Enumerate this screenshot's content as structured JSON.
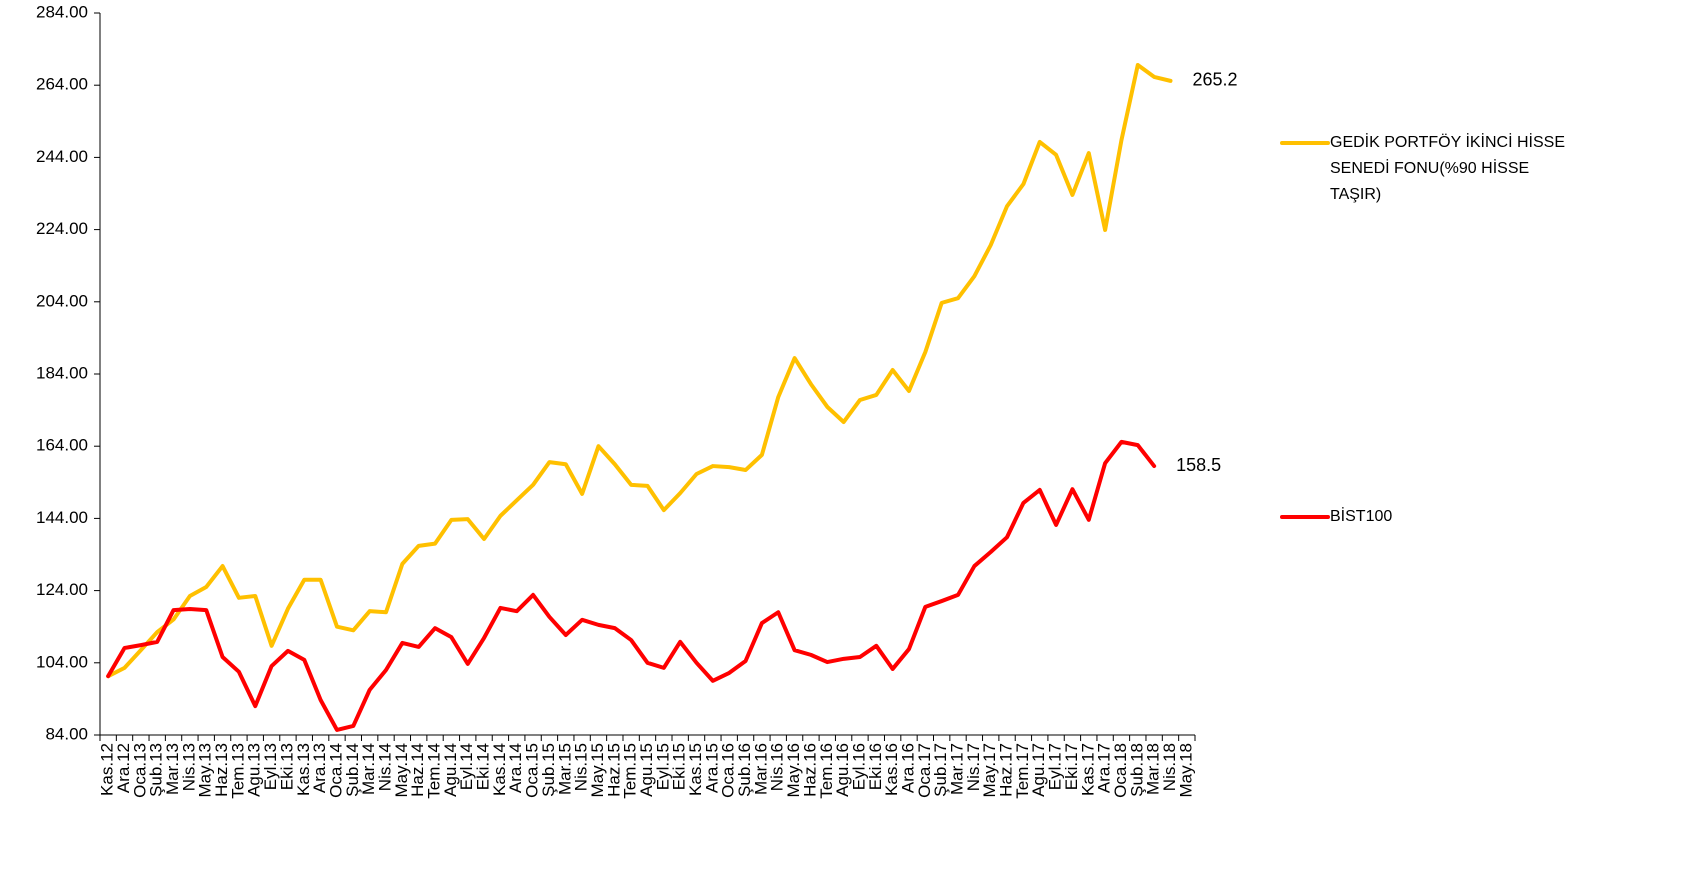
{
  "chart_data": {
    "type": "line",
    "categories": [
      "Kas.12",
      "Ara.12",
      "Oca.13",
      "Şub.13",
      "Mar.13",
      "Nis.13",
      "May.13",
      "Haz.13",
      "Tem.13",
      "Agu.13",
      "Eyl.13",
      "Eki.13",
      "Kas.13",
      "Ara.13",
      "Oca.14",
      "Şub.14",
      "Mar.14",
      "Nis.14",
      "May.14",
      "Haz.14",
      "Tem.14",
      "Agu.14",
      "Eyl.14",
      "Eki.14",
      "Kas.14",
      "Ara.14",
      "Oca.15",
      "Şub.15",
      "Mar.15",
      "Nis.15",
      "May.15",
      "Haz.15",
      "Tem.15",
      "Agu.15",
      "Eyl.15",
      "Eki.15",
      "Kas.15",
      "Ara.15",
      "Oca.16",
      "Şub.16",
      "Mar.16",
      "Nis.16",
      "May.16",
      "Haz.16",
      "Tem.16",
      "Agu.16",
      "Eyl.16",
      "Eki.16",
      "Kas.16",
      "Ara.16",
      "Oca.17",
      "Şub.17",
      "Mar.17",
      "Nis.17",
      "May.17",
      "Haz.17",
      "Tem.17",
      "Agu.17",
      "Eyl.17",
      "Eki.17",
      "Kas.17",
      "Ara.17",
      "Oca.18",
      "Şub.18",
      "Mar.18",
      "Nis.18",
      "May.18"
    ],
    "series": [
      {
        "name": "GEDİK PORTFÖY İKİNCİ HİSSE SENEDİ FONU(%90 HİSSE TAŞIR)",
        "color": "#ffc000",
        "values": [
          100.3,
          102.6,
          107.5,
          112.5,
          116,
          122.5,
          125,
          130.8,
          122,
          122.5,
          108.7,
          119,
          127,
          127,
          114,
          113,
          118.3,
          118,
          131.4,
          136.4,
          137,
          143.6,
          143.8,
          138.3,
          144.7,
          149,
          153.3,
          159.6,
          159,
          150.8,
          164,
          159,
          153.3,
          153,
          146.3,
          151,
          156.3,
          158.5,
          158.2,
          157.4,
          161.6,
          177.6,
          188.4,
          181.2,
          174.9,
          170.7,
          176.8,
          178.2,
          185.1,
          179.3,
          190.1,
          203.7,
          205,
          211.1,
          219.7,
          230.5,
          236.6,
          248.3,
          244.7,
          233.6,
          245.2,
          223.9,
          248.8,
          269.6,
          266.3,
          265.2,
          null
        ],
        "value_labels": [
          null,
          null,
          null,
          null,
          null,
          null,
          null,
          null,
          null,
          null,
          null,
          null,
          null,
          null,
          null,
          null,
          null,
          null,
          null,
          null,
          null,
          null,
          null,
          null,
          null,
          null,
          null,
          null,
          null,
          null,
          null,
          null,
          null,
          null,
          null,
          null,
          null,
          null,
          null,
          null,
          null,
          null,
          null,
          null,
          null,
          null,
          null,
          null,
          null,
          null,
          null,
          null,
          null,
          null,
          null,
          null,
          null,
          null,
          null,
          null,
          null,
          null,
          null,
          null,
          null,
          "265.2",
          null
        ]
      },
      {
        "name": "BİST100",
        "color": "#ff0000",
        "values": [
          100.3,
          108.1,
          108.9,
          109.8,
          118.6,
          118.9,
          118.6,
          105.6,
          101.5,
          92,
          103.1,
          107.3,
          104.8,
          93.7,
          85.4,
          86.5,
          96.5,
          102,
          109.5,
          108.4,
          113.6,
          111.1,
          103.7,
          110.9,
          119.2,
          118.3,
          122.8,
          116.7,
          111.7,
          115.9,
          114.5,
          113.6,
          110.3,
          104,
          102.6,
          109.8,
          104,
          99,
          101.2,
          104.5,
          115,
          118,
          107.5,
          106.2,
          104.2,
          105.1,
          105.6,
          108.7,
          102.3,
          107.8,
          119.5,
          121.1,
          122.8,
          130.8,
          134.7,
          138.8,
          148.3,
          151.9,
          142.2,
          152.1,
          143.6,
          159.3,
          165.2,
          164.3,
          158.5,
          null,
          null
        ],
        "value_labels": [
          null,
          null,
          null,
          null,
          null,
          null,
          null,
          null,
          null,
          null,
          null,
          null,
          null,
          null,
          null,
          null,
          null,
          null,
          null,
          null,
          null,
          null,
          null,
          null,
          null,
          null,
          null,
          null,
          null,
          null,
          null,
          null,
          null,
          null,
          null,
          null,
          null,
          null,
          null,
          null,
          null,
          null,
          null,
          null,
          null,
          null,
          null,
          null,
          null,
          null,
          null,
          null,
          null,
          null,
          null,
          null,
          null,
          null,
          null,
          null,
          null,
          null,
          null,
          null,
          "158.5",
          null,
          null
        ]
      }
    ],
    "ylim": [
      84,
      284
    ],
    "yticks": [
      {
        "value": 84,
        "label": "84.00"
      },
      {
        "value": 104,
        "label": "104.00"
      },
      {
        "value": 124,
        "label": "124.00"
      },
      {
        "value": 144,
        "label": "144.00"
      },
      {
        "value": 164,
        "label": "164.00"
      },
      {
        "value": 184,
        "label": "184.00"
      },
      {
        "value": 204,
        "label": "204.00"
      },
      {
        "value": 224,
        "label": "224.00"
      },
      {
        "value": 244,
        "label": "244.00"
      },
      {
        "value": 264,
        "label": "264.00"
      },
      {
        "value": 284,
        "label": "284.00"
      }
    ],
    "grid": false,
    "legend": "right"
  }
}
